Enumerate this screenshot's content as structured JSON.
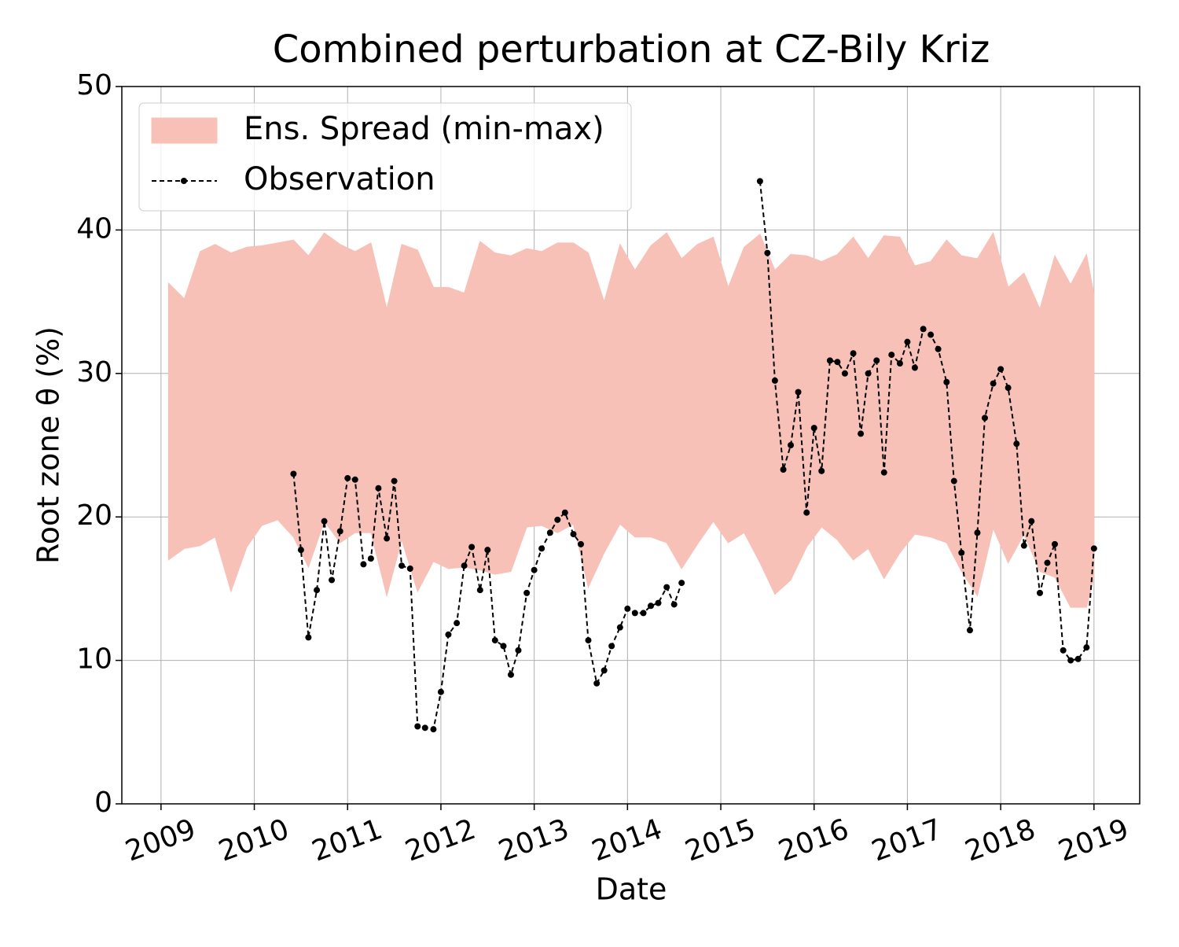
{
  "chart_data": {
    "type": "line",
    "title": "Combined perturbation at CZ-Bily Kriz",
    "x_label": "Date",
    "y_label": "Root zone θ  (%)",
    "xlim": [
      2008.58,
      2019.49
    ],
    "ylim": [
      0,
      50
    ],
    "xticks": [
      2009,
      2010,
      2011,
      2012,
      2013,
      2014,
      2015,
      2016,
      2017,
      2018,
      2019
    ],
    "yticks": [
      0,
      10,
      20,
      30,
      40,
      50
    ],
    "grid": true,
    "legend": "upper left",
    "series": [
      {
        "name": "Ens. Spread (min-max)",
        "color": "#f7c1b8",
        "x": [
          2009.08,
          2009.25,
          2009.42,
          2009.58,
          2009.75,
          2009.92,
          2010.08,
          2010.25,
          2010.42,
          2010.58,
          2010.75,
          2010.92,
          2011.08,
          2011.25,
          2011.42,
          2011.58,
          2011.75,
          2011.92,
          2012.08,
          2012.25,
          2012.42,
          2012.58,
          2012.75,
          2012.92,
          2013.08,
          2013.25,
          2013.42,
          2013.58,
          2013.75,
          2013.92,
          2014.08,
          2014.25,
          2014.42,
          2014.58,
          2014.75,
          2014.92,
          2015.08,
          2015.25,
          2015.42,
          2015.58,
          2015.75,
          2015.92,
          2016.08,
          2016.25,
          2016.42,
          2016.58,
          2016.75,
          2016.92,
          2017.08,
          2017.25,
          2017.42,
          2017.58,
          2017.75,
          2017.92,
          2018.08,
          2018.25,
          2018.42,
          2018.58,
          2018.75,
          2018.92,
          2019.0
        ],
        "upper": [
          36.3,
          35.2,
          38.5,
          39.0,
          38.4,
          38.8,
          38.9,
          39.1,
          39.3,
          38.2,
          39.8,
          39.0,
          38.5,
          39.1,
          34.5,
          39.0,
          38.6,
          36.0,
          36.0,
          35.6,
          39.2,
          38.4,
          38.2,
          38.7,
          38.5,
          39.1,
          39.1,
          38.4,
          35.0,
          39.0,
          37.2,
          38.9,
          39.8,
          38.0,
          39.0,
          39.5,
          36.0,
          38.8,
          39.7,
          37.2,
          38.3,
          38.2,
          37.8,
          38.3,
          39.5,
          38.0,
          39.6,
          39.5,
          37.5,
          37.8,
          39.3,
          38.2,
          38.0,
          39.8,
          36.0,
          37.0,
          34.5,
          38.2,
          36.2,
          38.3,
          35.5
        ],
        "lower": [
          17.0,
          17.8,
          18.0,
          18.6,
          14.8,
          17.9,
          19.4,
          19.8,
          18.6,
          16.5,
          19.7,
          18.2,
          18.9,
          18.9,
          14.5,
          18.4,
          14.8,
          16.9,
          16.4,
          16.5,
          16.3,
          16.0,
          16.2,
          19.3,
          19.4,
          18.9,
          19.5,
          15.1,
          17.5,
          19.5,
          18.6,
          18.6,
          18.2,
          16.4,
          18.1,
          19.7,
          18.2,
          18.9,
          16.8,
          14.6,
          15.6,
          17.9,
          19.3,
          18.4,
          17.0,
          17.8,
          15.7,
          17.5,
          18.8,
          18.6,
          18.2,
          16.2,
          14.5,
          19.2,
          16.8,
          18.8,
          16.2,
          15.8,
          13.7,
          13.7,
          15.8
        ]
      },
      {
        "name": "Observation",
        "color": "#000000",
        "linestyle": "dashed",
        "marker": "o",
        "x": [
          2010.42,
          2010.5,
          2010.58,
          2010.67,
          2010.75,
          2010.83,
          2010.92,
          2011.0,
          2011.08,
          2011.17,
          2011.25,
          2011.33,
          2011.42,
          2011.5,
          2011.58,
          2011.67,
          2011.75,
          2011.83,
          2011.92,
          2012.0,
          2012.08,
          2012.17,
          2012.25,
          2012.33,
          2012.42,
          2012.5,
          2012.58,
          2012.67,
          2012.75,
          2012.83,
          2012.92,
          2013.0,
          2013.08,
          2013.17,
          2013.25,
          2013.33,
          2013.42,
          2013.5,
          2013.58,
          2013.67,
          2013.75,
          2013.83,
          2013.92,
          2014.0,
          2014.08,
          2014.17,
          2014.25,
          2014.33,
          2014.42,
          2014.5,
          2014.58,
          2015.0,
          2015.42,
          2015.5,
          2015.58,
          2015.67,
          2015.75,
          2015.83,
          2015.92,
          2016.0,
          2016.08,
          2016.17,
          2016.25,
          2016.33,
          2016.42,
          2016.5,
          2016.58,
          2016.67,
          2016.75,
          2016.83,
          2016.92,
          2017.0,
          2017.08,
          2017.17,
          2017.25,
          2017.33,
          2017.42,
          2017.5,
          2017.58,
          2017.67,
          2017.75,
          2017.83,
          2017.92,
          2018.0,
          2018.08,
          2018.17,
          2018.25,
          2018.33,
          2018.42,
          2018.5,
          2018.58,
          2018.67,
          2018.75,
          2018.83,
          2018.92,
          2019.0
        ],
        "values": [
          23.0,
          17.7,
          11.6,
          14.9,
          19.7,
          15.6,
          19.0,
          22.7,
          22.6,
          16.7,
          17.1,
          22.0,
          18.5,
          22.5,
          16.6,
          16.4,
          5.4,
          5.3,
          5.2,
          7.8,
          11.8,
          12.6,
          16.6,
          17.9,
          14.9,
          17.7,
          11.4,
          11.0,
          9.0,
          10.7,
          14.7,
          16.3,
          17.8,
          18.9,
          19.8,
          20.3,
          18.8,
          18.1,
          11.4,
          8.4,
          9.3,
          11.0,
          12.3,
          13.6,
          13.3,
          13.3,
          13.8,
          14.0,
          15.1,
          13.9,
          15.4,
          null,
          43.4,
          38.4,
          29.5,
          23.3,
          25.0,
          28.7,
          20.3,
          26.2,
          23.2,
          30.9,
          30.8,
          30.0,
          31.4,
          25.8,
          30.0,
          30.9,
          23.1,
          31.3,
          30.7,
          32.2,
          30.4,
          33.1,
          32.7,
          31.7,
          29.4,
          22.5,
          17.5,
          12.1,
          18.9,
          26.9,
          29.3,
          30.3,
          29.0,
          25.1,
          18.0,
          19.7,
          14.7,
          16.8,
          18.1,
          10.7,
          10.0,
          10.1,
          10.9,
          17.8
        ]
      }
    ]
  }
}
